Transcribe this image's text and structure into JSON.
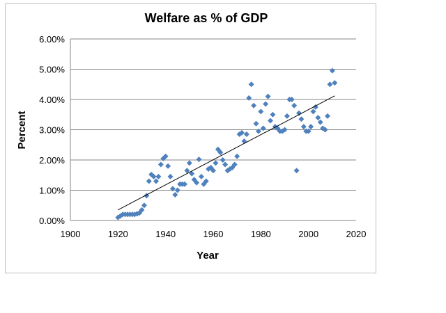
{
  "chart_data": {
    "type": "scatter",
    "title": "Welfare as % of GDP",
    "xlabel": "Year",
    "ylabel": "Percent",
    "xlim": [
      1900,
      2020
    ],
    "ylim": [
      0,
      6
    ],
    "xticks": [
      "1900",
      "1920",
      "1940",
      "1960",
      "1980",
      "2000",
      "2020"
    ],
    "yticks": [
      "0.00%",
      "1.00%",
      "2.00%",
      "3.00%",
      "4.00%",
      "5.00%",
      "6.00%"
    ],
    "grid": "horizontal",
    "legend": "none",
    "marker_color": "#4f81bd",
    "trendline": {
      "type": "linear",
      "x": [
        1920,
        2011
      ],
      "y": [
        0.35,
        4.12
      ]
    },
    "x": [
      1920,
      1921,
      1922,
      1923,
      1924,
      1925,
      1926,
      1927,
      1928,
      1929,
      1930,
      1931,
      1932,
      1933,
      1934,
      1935,
      1936,
      1937,
      1938,
      1939,
      1940,
      1941,
      1942,
      1943,
      1944,
      1945,
      1946,
      1947,
      1948,
      1949,
      1950,
      1951,
      1952,
      1953,
      1954,
      1955,
      1956,
      1957,
      1958,
      1959,
      1960,
      1961,
      1962,
      1963,
      1964,
      1965,
      1966,
      1967,
      1968,
      1969,
      1970,
      1971,
      1972,
      1973,
      1974,
      1975,
      1976,
      1977,
      1978,
      1979,
      1980,
      1981,
      1982,
      1983,
      1984,
      1985,
      1986,
      1987,
      1988,
      1989,
      1990,
      1991,
      1992,
      1993,
      1994,
      1995,
      1996,
      1997,
      1998,
      1999,
      2000,
      2001,
      2002,
      2003,
      2004,
      2005,
      2006,
      2007,
      2008,
      2009,
      2010,
      2011
    ],
    "y": [
      0.1,
      0.15,
      0.2,
      0.2,
      0.2,
      0.2,
      0.2,
      0.2,
      0.22,
      0.25,
      0.35,
      0.5,
      0.82,
      1.3,
      1.52,
      1.45,
      1.3,
      1.45,
      1.85,
      2.05,
      2.12,
      1.8,
      1.45,
      1.05,
      0.85,
      1.0,
      1.2,
      1.2,
      1.2,
      1.65,
      1.9,
      1.55,
      1.35,
      1.25,
      2.02,
      1.45,
      1.2,
      1.3,
      1.7,
      1.75,
      1.65,
      1.9,
      2.35,
      2.25,
      2.0,
      1.85,
      1.65,
      1.7,
      1.75,
      1.85,
      2.12,
      2.85,
      2.9,
      2.62,
      2.85,
      4.05,
      4.5,
      3.8,
      3.2,
      2.95,
      3.6,
      3.05,
      3.85,
      4.1,
      3.3,
      3.5,
      3.1,
      3.05,
      2.95,
      2.95,
      3.0,
      3.45,
      4.0,
      4.0,
      3.8,
      1.65,
      3.55,
      3.35,
      3.1,
      2.95,
      2.95,
      3.1,
      3.6,
      3.75,
      3.4,
      3.25,
      3.05,
      3.0,
      3.45,
      4.5,
      4.95,
      4.55
    ]
  }
}
